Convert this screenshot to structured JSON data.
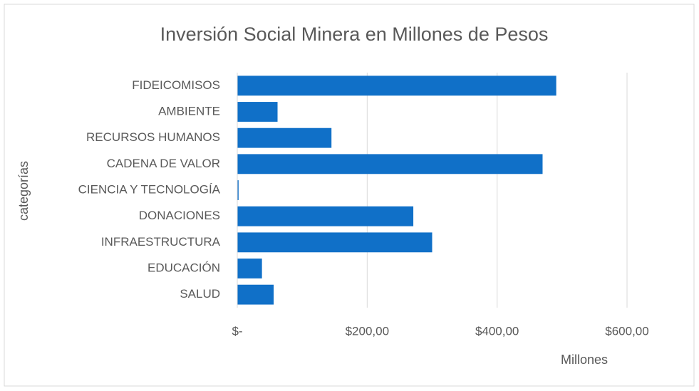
{
  "chart_data": {
    "type": "bar",
    "orientation": "horizontal",
    "title": "Inversión Social Minera en Millones de Pesos",
    "y_label": "categorías",
    "x_label": "Millones",
    "categories": [
      "FIDEICOMISOS",
      "AMBIENTE",
      "RECURSOS HUMANOS",
      "CADENA DE VALOR",
      "CIENCIA Y TECNOLOGÍA",
      "DONACIONES",
      "INFRAESTRUCTURA",
      "EDUCACIÓN",
      "SALUD"
    ],
    "values": [
      491,
      62,
      145,
      470,
      2,
      271,
      300,
      38,
      56
    ],
    "color": "#1070c8",
    "xlim": [
      0,
      600
    ],
    "xticks": [
      {
        "value": 0,
        "label": "$-"
      },
      {
        "value": 200,
        "label": "$200,00"
      },
      {
        "value": 400,
        "label": "$400,00"
      },
      {
        "value": 600,
        "label": "$600,00"
      }
    ],
    "grid": true
  }
}
